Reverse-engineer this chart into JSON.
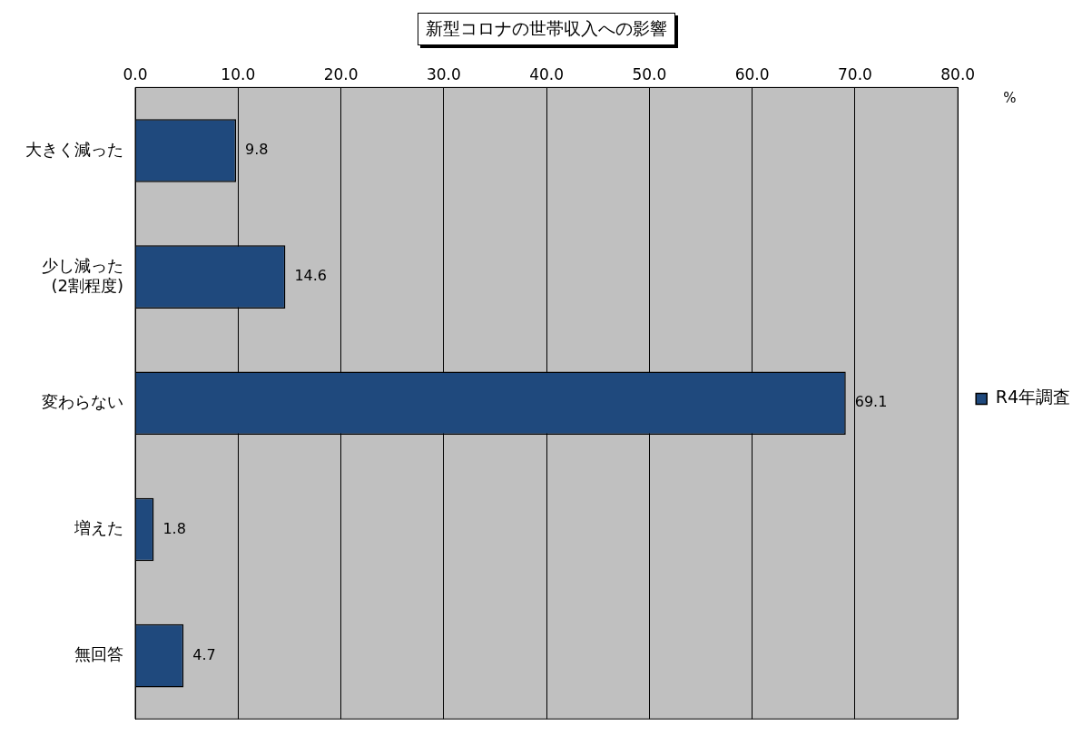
{
  "chart_data": {
    "type": "bar",
    "orientation": "horizontal",
    "title": "新型コロナの世帯収入への影響",
    "xlabel": "%",
    "categories": [
      "大きく減った",
      "少し減った\n(2割程度)",
      "変わらない",
      "増えた",
      "無回答"
    ],
    "series": [
      {
        "name": "R4年調査",
        "color": "#1f497d",
        "values": [
          9.8,
          14.6,
          69.1,
          1.8,
          4.7
        ]
      }
    ],
    "xlim": [
      0,
      80
    ],
    "xticks": [
      {
        "value": 0,
        "label": "0.0"
      },
      {
        "value": 10,
        "label": "10.0"
      },
      {
        "value": 20,
        "label": "20.0"
      },
      {
        "value": 30,
        "label": "30.0"
      },
      {
        "value": 40,
        "label": "40.0"
      },
      {
        "value": 50,
        "label": "50.0"
      },
      {
        "value": 60,
        "label": "60.0"
      },
      {
        "value": 70,
        "label": "70.0"
      },
      {
        "value": 80,
        "label": "80.0"
      }
    ],
    "grid": "x",
    "legend": "right",
    "data_labels": true
  }
}
